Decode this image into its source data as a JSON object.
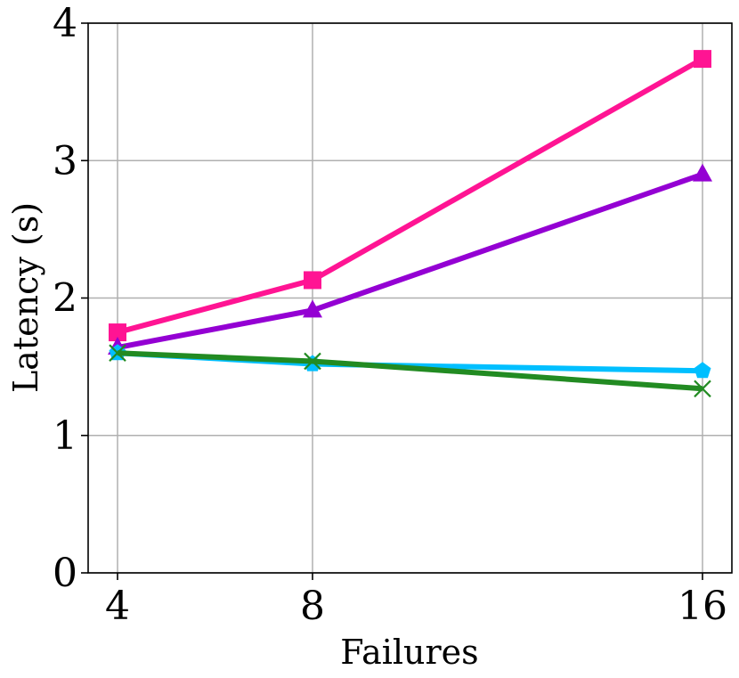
{
  "chart_data": {
    "type": "line",
    "title": "",
    "xlabel": "Failures",
    "ylabel": "Latency (s)",
    "x": [
      4,
      8,
      16
    ],
    "x_ticks": [
      "4",
      "8",
      "16"
    ],
    "y_ticks": [
      "0",
      "1",
      "2",
      "3",
      "4"
    ],
    "ylim": [
      0,
      4
    ],
    "grid": true,
    "legend": "none",
    "series": [
      {
        "color": "#ff1493",
        "marker": "square",
        "values": [
          1.75,
          2.13,
          3.74
        ]
      },
      {
        "color": "#9400d3",
        "marker": "triangle",
        "values": [
          1.64,
          1.91,
          2.9
        ]
      },
      {
        "color": "#00bfff",
        "marker": "pentagon",
        "values": [
          1.6,
          1.52,
          1.47
        ]
      },
      {
        "color": "#228b22",
        "marker": "x",
        "values": [
          1.6,
          1.54,
          1.34
        ]
      }
    ]
  }
}
